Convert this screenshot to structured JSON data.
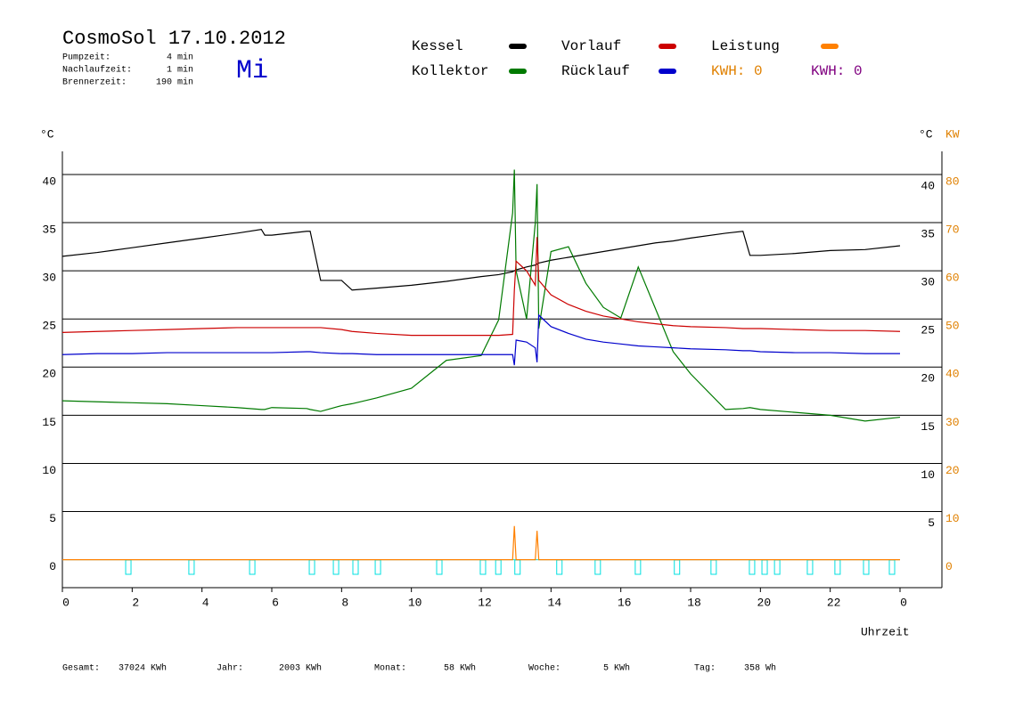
{
  "chart_data": {
    "type": "line",
    "title": "CosmoSol 17.10.2012",
    "x": [
      0,
      1,
      2,
      3,
      4,
      5,
      5.7,
      5.8,
      6,
      7,
      7.1,
      7.4,
      8,
      8.3,
      9,
      10,
      11,
      12,
      12.5,
      12.9,
      12.95,
      13,
      13.3,
      13.55,
      13.6,
      13.65,
      14,
      14.5,
      15,
      15.5,
      16,
      16.5,
      17,
      17.5,
      18,
      19,
      19.5,
      19.7,
      20,
      21,
      22,
      23,
      24
    ],
    "series": [
      {
        "name": "Kessel",
        "color": "#000000",
        "values": [
          31.5,
          31.9,
          32.4,
          32.9,
          33.4,
          33.9,
          34.3,
          33.7,
          33.7,
          34.1,
          34.1,
          29,
          29,
          28,
          28.2,
          28.5,
          28.9,
          29.4,
          29.6,
          29.9,
          30,
          30.1,
          30.4,
          30.6,
          30.7,
          30.8,
          31.1,
          31.4,
          31.7,
          32,
          32.3,
          32.6,
          32.9,
          33.1,
          33.4,
          33.9,
          34.1,
          31.6,
          31.6,
          31.8,
          32.1,
          32.2,
          32.6
        ]
      },
      {
        "name": "Kollektor",
        "color": "#007a00",
        "values": [
          16.5,
          16.4,
          16.3,
          16.2,
          16,
          15.8,
          15.6,
          15.6,
          15.8,
          15.7,
          15.6,
          15.4,
          16,
          16.2,
          16.8,
          17.8,
          20.7,
          21.2,
          24.9,
          36,
          40.5,
          30,
          25,
          35,
          39,
          24,
          32,
          32.5,
          28.7,
          26.2,
          25.1,
          30.4,
          26,
          21.6,
          19.3,
          15.6,
          15.7,
          15.8,
          15.6,
          15.3,
          15,
          14.4,
          14.8
        ]
      },
      {
        "name": "Vorlauf",
        "color": "#cc0000",
        "values": [
          23.6,
          23.7,
          23.8,
          23.9,
          24,
          24.1,
          24.1,
          24.1,
          24.1,
          24.1,
          24.1,
          24.1,
          23.9,
          23.7,
          23.5,
          23.3,
          23.3,
          23.3,
          23.3,
          23.4,
          28,
          31,
          30,
          28.5,
          33.5,
          29,
          27.5,
          26.5,
          25.8,
          25.3,
          25,
          24.7,
          24.5,
          24.3,
          24.2,
          24.1,
          24,
          24,
          24,
          23.9,
          23.8,
          23.8,
          23.7
        ]
      },
      {
        "name": "Rücklauf",
        "color": "#0000cc",
        "values": [
          21.3,
          21.4,
          21.4,
          21.5,
          21.5,
          21.5,
          21.5,
          21.5,
          21.5,
          21.6,
          21.6,
          21.5,
          21.4,
          21.4,
          21.3,
          21.3,
          21.3,
          21.3,
          21.3,
          21.3,
          20.2,
          22.8,
          22.6,
          22,
          20.5,
          25.4,
          24.2,
          23.5,
          22.9,
          22.6,
          22.4,
          22.2,
          22.1,
          22,
          21.9,
          21.8,
          21.7,
          21.7,
          21.6,
          21.5,
          21.5,
          21.4,
          21.4
        ]
      },
      {
        "name": "Leistung",
        "color": "#ff8000",
        "axis": "y2",
        "values": [
          0,
          0,
          0,
          0,
          0,
          0,
          0,
          0,
          0,
          0,
          0,
          0,
          0,
          0,
          0,
          0,
          0,
          0,
          0,
          0,
          7,
          0,
          0,
          0,
          6,
          0,
          0,
          0,
          0,
          0,
          0,
          0,
          0,
          0,
          0,
          0,
          0,
          0,
          0,
          0,
          0,
          0,
          0
        ]
      }
    ],
    "xlim": [
      0,
      25.2
    ],
    "xticks": [
      0,
      2,
      4,
      6,
      8,
      10,
      12,
      14,
      16,
      18,
      20,
      22,
      {
        "value": 24,
        "label": "0"
      }
    ],
    "ylim": [
      -2.9,
      42.4
    ],
    "yticks": [
      0,
      5,
      10,
      15,
      20,
      25,
      30,
      35,
      40
    ],
    "y_right_ticks": [
      5,
      10,
      15,
      20,
      25,
      30,
      35,
      40
    ],
    "y2lim": [
      -5.8,
      84.8
    ],
    "y2ticks": [
      0,
      10,
      20,
      30,
      40,
      50,
      60,
      70,
      80
    ],
    "y2_color": "#e08000",
    "zero_line_color": "#00e0e0",
    "grid": true,
    "y_label": "°C",
    "y_right_label": "°C",
    "y2_label": "KW",
    "x_label": "Uhrzeit",
    "pump_markers": [
      1.89,
      3.7,
      5.44,
      7.15,
      7.84,
      8.4,
      9.04,
      10.8,
      12.05,
      12.49,
      13.04,
      14.24,
      15.34,
      16.49,
      17.61,
      18.66,
      19.76,
      20.12,
      20.48,
      21.42,
      22.21,
      23.03,
      23.77
    ],
    "pump_color": "#00e0e0",
    "kwh_labels": [
      {
        "text": "KWH: 0",
        "color": "#e08000"
      },
      {
        "text": "KWH: 0",
        "color": "#800080"
      }
    ]
  },
  "info": [
    {
      "label": "Pumpzeit:",
      "value": "4 min"
    },
    {
      "label": "Nachlaufzeit:",
      "value": "1 min"
    },
    {
      "label": "Brennerzeit:",
      "value": "190 min"
    }
  ],
  "weekday": "Mi",
  "totals": [
    {
      "label": "Gesamt:",
      "value": "37024 KWh"
    },
    {
      "label": "Jahr:",
      "value": "2003 KWh"
    },
    {
      "label": "Monat:",
      "value": "58 KWh"
    },
    {
      "label": "Woche:",
      "value": "5 KWh"
    },
    {
      "label": "Tag:",
      "value": "358 Wh"
    }
  ]
}
